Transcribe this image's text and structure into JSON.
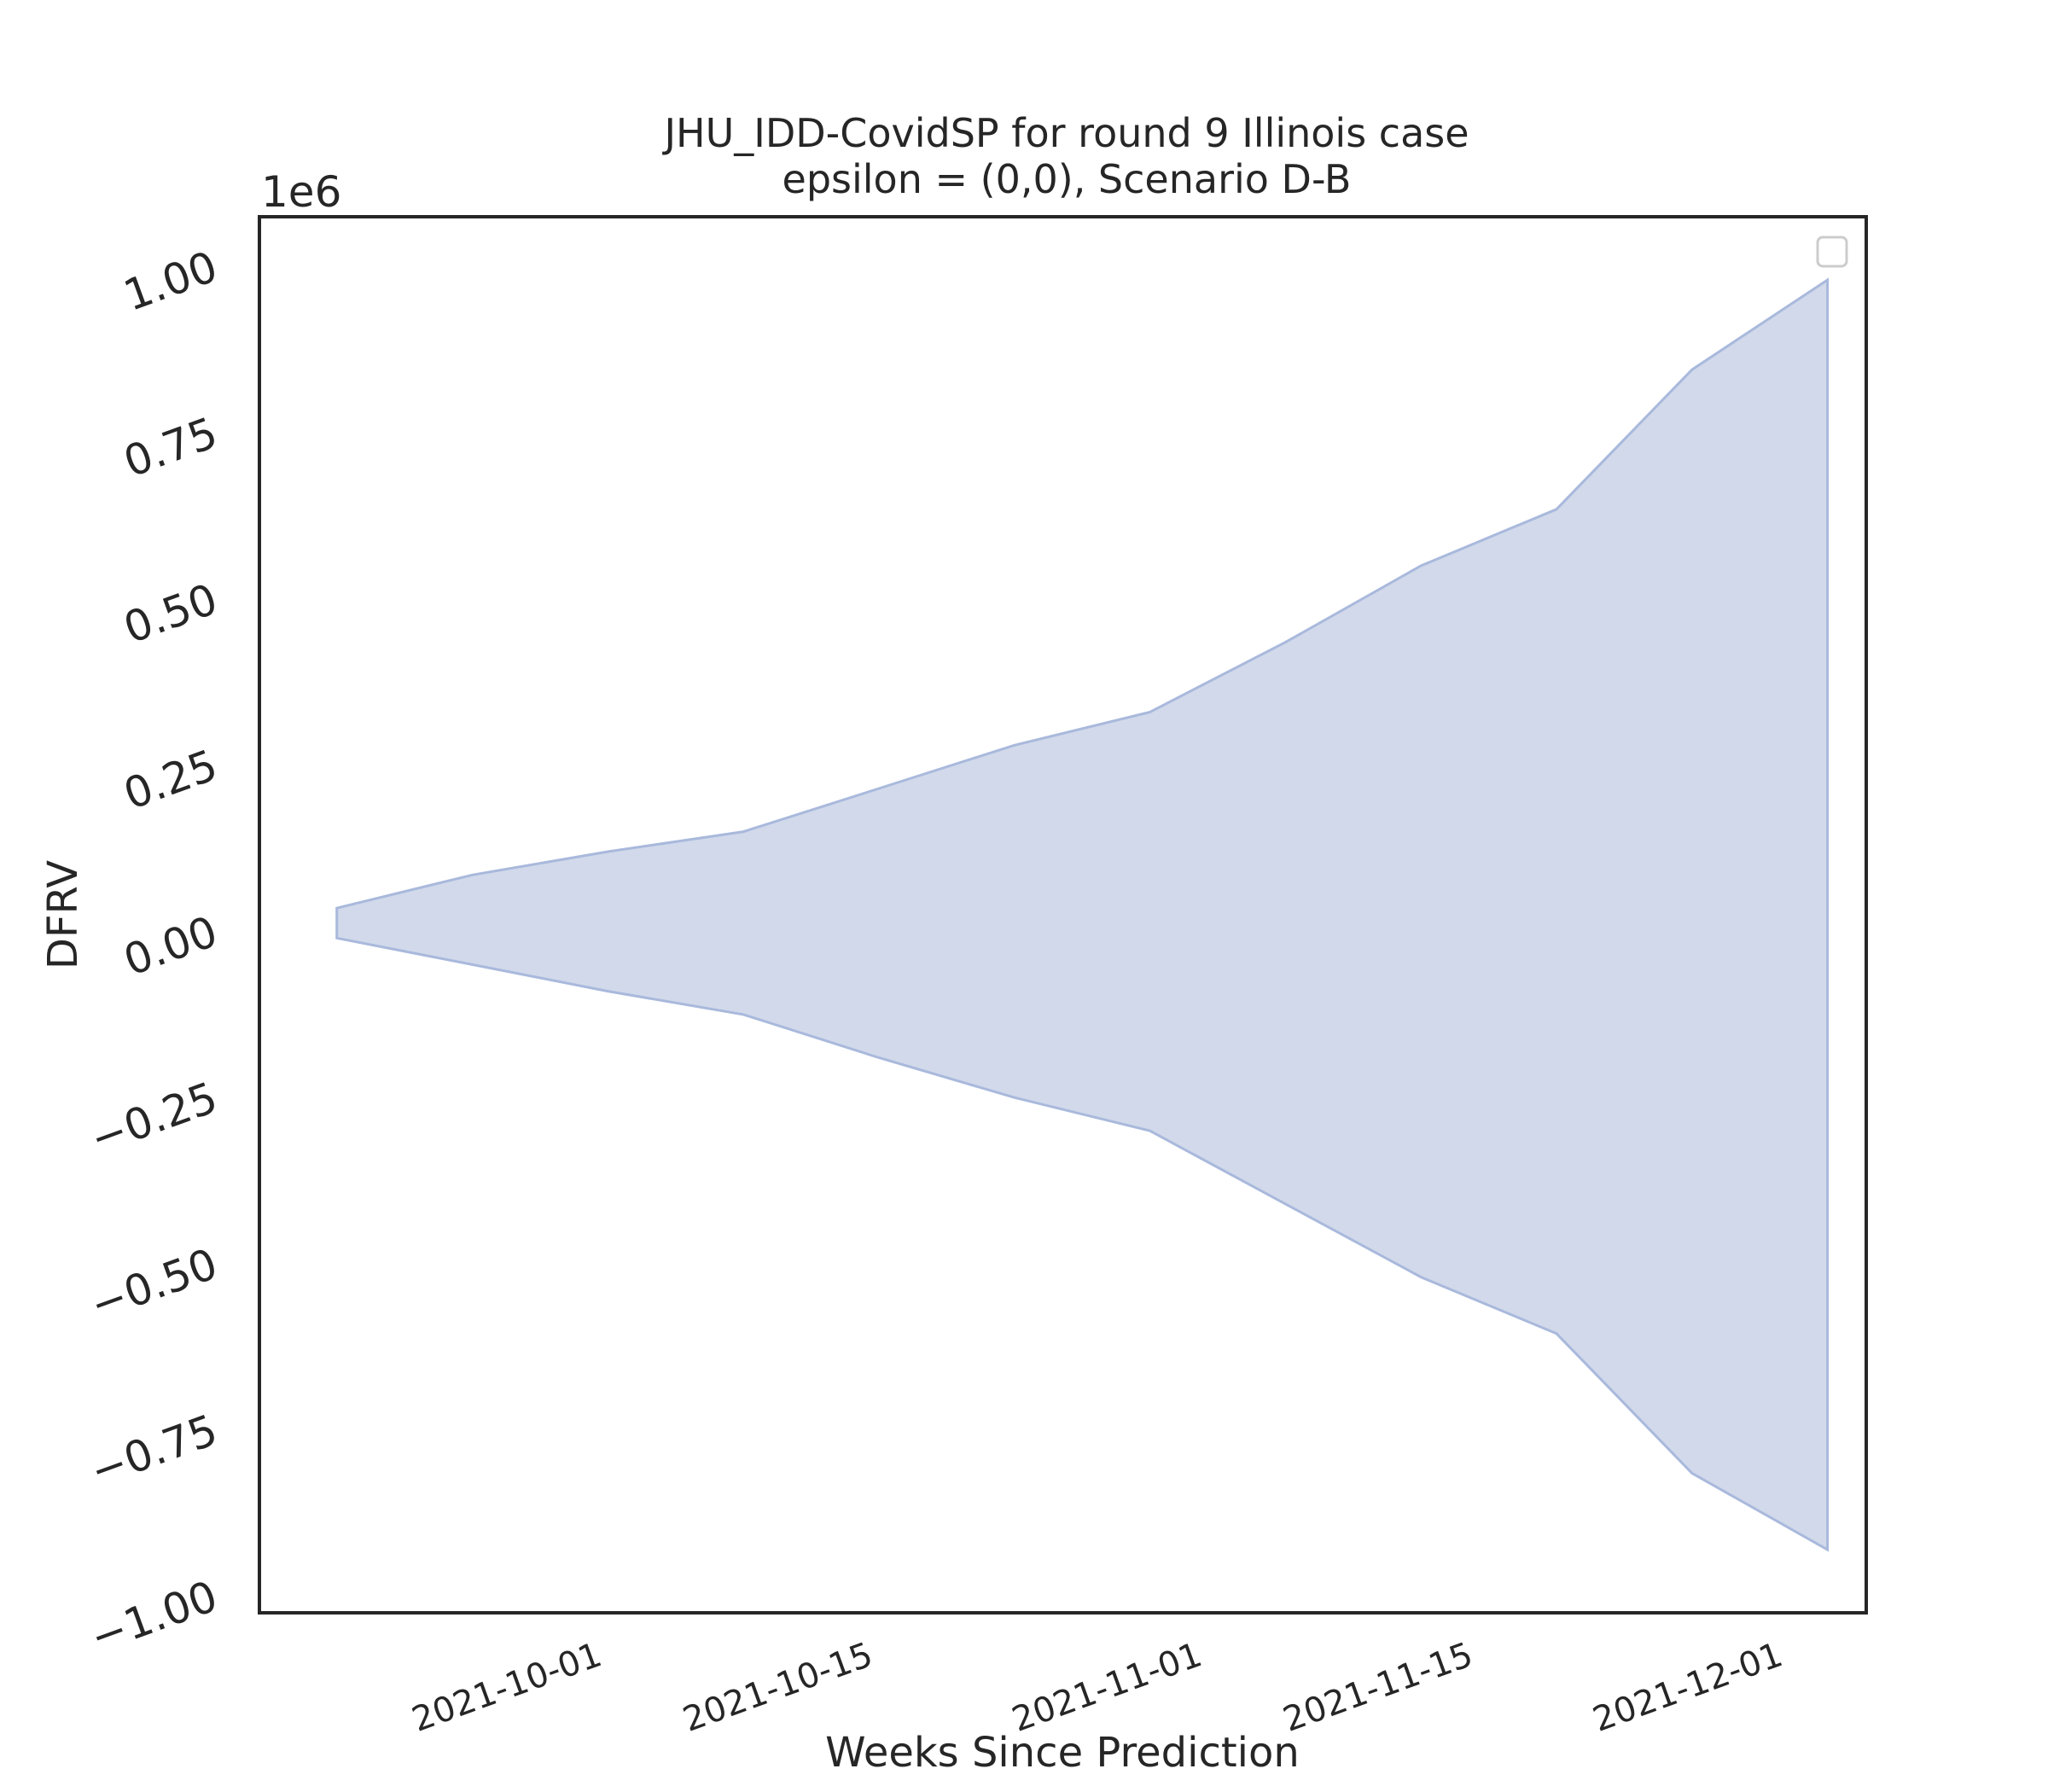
{
  "chart_data": {
    "type": "area",
    "title": "JHU_IDD-CovidSP for round 9 Illinois case\nepsilon = (0,0), Scenario D-B",
    "xlabel": "Weeks Since Prediction",
    "ylabel": "DFRV",
    "y_offset_label": "1e6",
    "y_scale_multiplier": 1000000,
    "x_ticks": [
      "2021-10-01",
      "2021-10-15",
      "2021-11-01",
      "2021-11-15",
      "2021-12-01"
    ],
    "y_ticks": [
      -1.0,
      -0.75,
      -0.5,
      -0.25,
      0.0,
      0.25,
      0.5,
      0.75,
      1.0
    ],
    "y_tick_labels": [
      "−1.00",
      "−0.75",
      "−0.50",
      "−0.25",
      "0.00",
      "0.25",
      "0.50",
      "0.75",
      "1.00"
    ],
    "xlim": [
      "2021-09-14",
      "2021-12-06"
    ],
    "ylim": [
      -1.03,
      1.07
    ],
    "grid": false,
    "legend": "top-right",
    "fill_color": "#c5d0e6",
    "series": [
      {
        "x": [
          "2021-09-18",
          "2021-09-25",
          "2021-10-02",
          "2021-10-09",
          "2021-10-16",
          "2021-10-23",
          "2021-10-30",
          "2021-11-06",
          "2021-11-13",
          "2021-11-20",
          "2021-11-27",
          "2021-12-04"
        ],
        "upper": [
          30000,
          80000,
          115000,
          145000,
          210000,
          275000,
          325000,
          430000,
          545000,
          630000,
          840000,
          975000
        ],
        "lower": [
          -15000,
          -55000,
          -95000,
          -130000,
          -195000,
          -255000,
          -305000,
          -415000,
          -525000,
          -610000,
          -820000,
          -935000
        ]
      }
    ]
  }
}
